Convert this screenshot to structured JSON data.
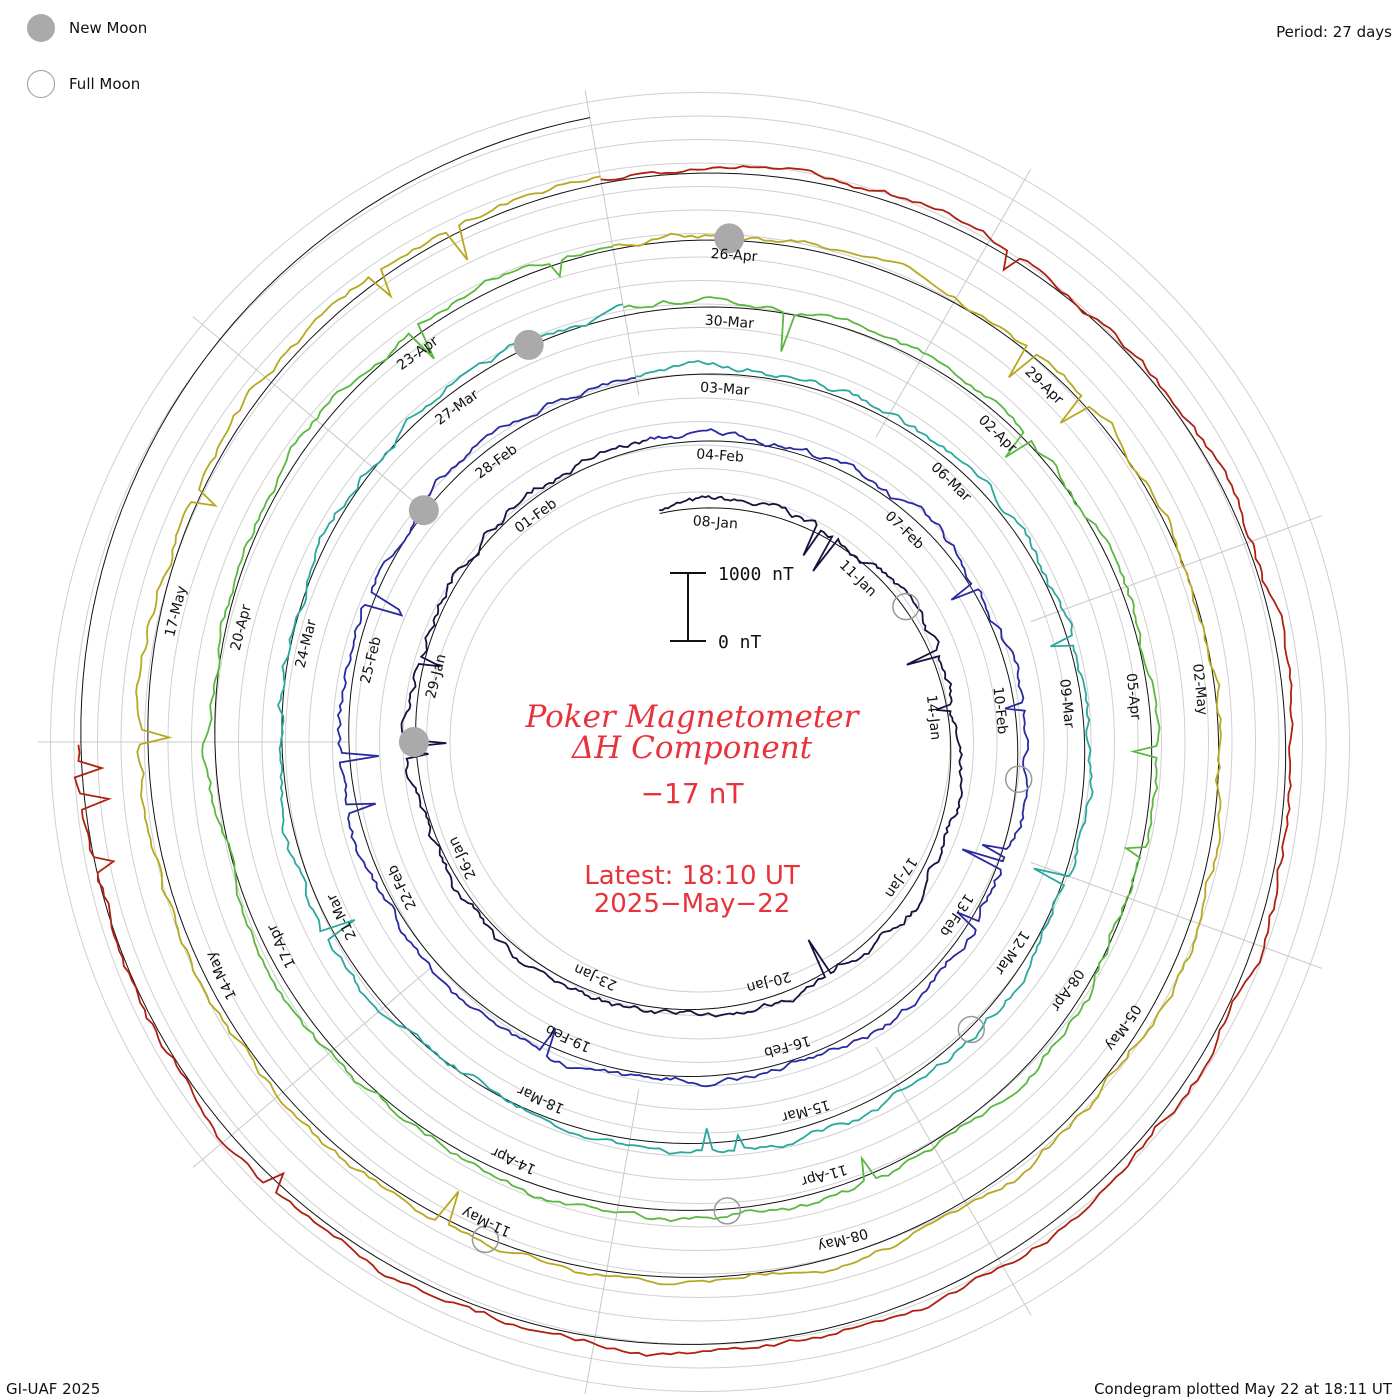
{
  "legend": {
    "new_moon": "New Moon",
    "full_moon": "Full Moon",
    "new_moon_color": "#aaaaaa",
    "full_moon_color": "#999999"
  },
  "period": "Period: 27 days",
  "footer": {
    "left": "GI-UAF 2025",
    "right": "Condegram plotted May 22 at 18:11 UT"
  },
  "center": {
    "title_line1": "Poker Magnetometer",
    "title_line2": "ΔH Component",
    "current_value": "−17 nT",
    "latest_line1": "Latest: 18:10 UT",
    "latest_line2": "2025−May−22",
    "text_color": "#e8323c"
  },
  "scale_bar": {
    "top_label": "1000 nT",
    "bottom_label": "0 nT"
  },
  "chart_data": {
    "type": "line",
    "subtype": "condegram-spiral",
    "period_days": 27,
    "grid": true,
    "series": [
      {
        "color": "#1a1040",
        "date_labels": [
          "08-Jan",
          "11-Jan",
          "14-Jan",
          "17-Jan",
          "20-Jan",
          "23-Jan",
          "26-Jan",
          "29-Jan",
          "01-Feb"
        ]
      },
      {
        "color": "#2a2aa0",
        "date_labels": [
          "04-Feb",
          "07-Feb",
          "10-Feb",
          "13-Feb",
          "16-Feb",
          "19-Feb",
          "22-Feb",
          "25-Feb",
          "28-Feb"
        ]
      },
      {
        "color": "#2aa8a0",
        "date_labels": [
          "03-Mar",
          "06-Mar",
          "09-Mar",
          "12-Mar",
          "15-Mar",
          "18-Mar",
          "21-Mar",
          "24-Mar",
          "27-Mar"
        ]
      },
      {
        "color": "#5ab840",
        "date_labels": [
          "30-Mar",
          "02-Apr",
          "05-Apr",
          "08-Apr",
          "11-Apr",
          "14-Apr",
          "17-Apr",
          "20-Apr",
          "23-Apr"
        ]
      },
      {
        "color": "#b8a820",
        "date_labels": [
          "26-Apr",
          "29-Apr",
          "02-May",
          "05-May",
          "08-May",
          "11-May",
          "14-May",
          "17-May"
        ]
      },
      {
        "color": "#b02010",
        "date_labels": []
      }
    ],
    "new_moons": [
      "29-Jan",
      "28-Feb",
      "29-Mar",
      "27-Apr"
    ],
    "full_moons": [
      "13-Jan",
      "12-Feb",
      "14-Mar",
      "13-Apr",
      "12-May"
    ]
  }
}
